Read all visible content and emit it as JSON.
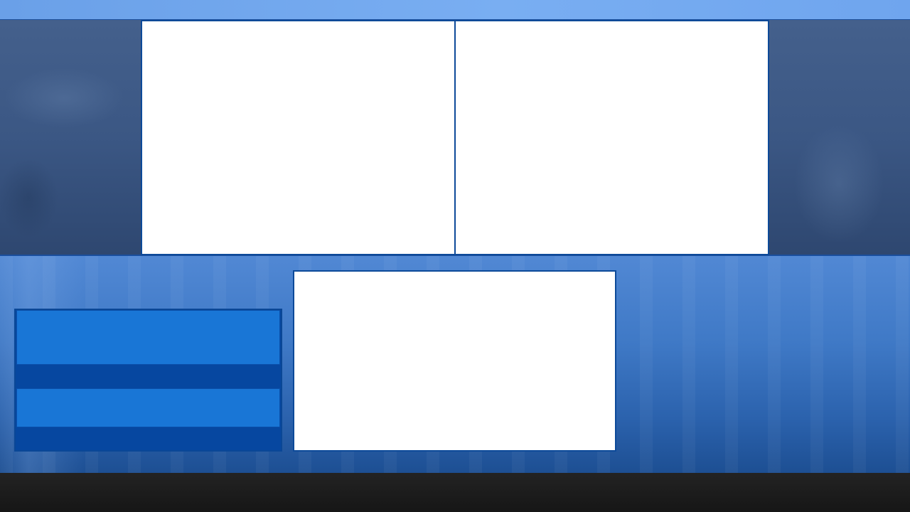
{
  "theme": {
    "accent": "#1976d6",
    "panel_border": "#0d4a99",
    "panel_background": "#ffffff",
    "footer": "#1a1a1a"
  },
  "panels": {
    "top_left": "",
    "top_right": "",
    "center": ""
  },
  "menu": {
    "items": [
      {
        "label": ""
      },
      {
        "label": ""
      }
    ]
  }
}
